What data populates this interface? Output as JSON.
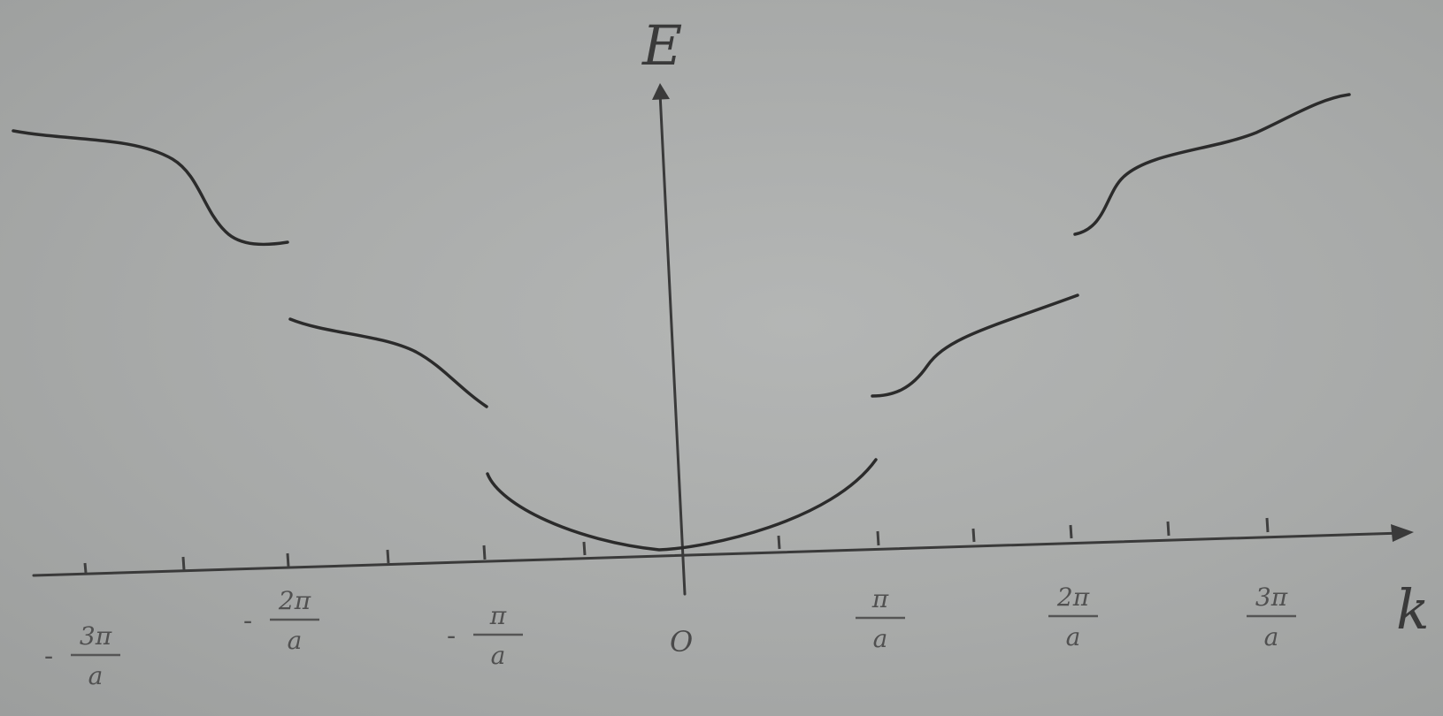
{
  "axes": {
    "y_label": "E",
    "x_label": "k",
    "origin_label": "O"
  },
  "tick_labels": [
    {
      "sign": "-",
      "numerator": "3π",
      "denominator": "a"
    },
    {
      "sign": "-",
      "numerator": "2π",
      "denominator": "a"
    },
    {
      "sign": "-",
      "numerator": "π",
      "denominator": "a"
    },
    {
      "sign": "",
      "numerator": "π",
      "denominator": "a"
    },
    {
      "sign": "",
      "numerator": "2π",
      "denominator": "a"
    },
    {
      "sign": "",
      "numerator": "3π",
      "denominator": "a"
    }
  ],
  "colors": {
    "background": "#a9abaa",
    "ink": "#2b2b2b"
  }
}
